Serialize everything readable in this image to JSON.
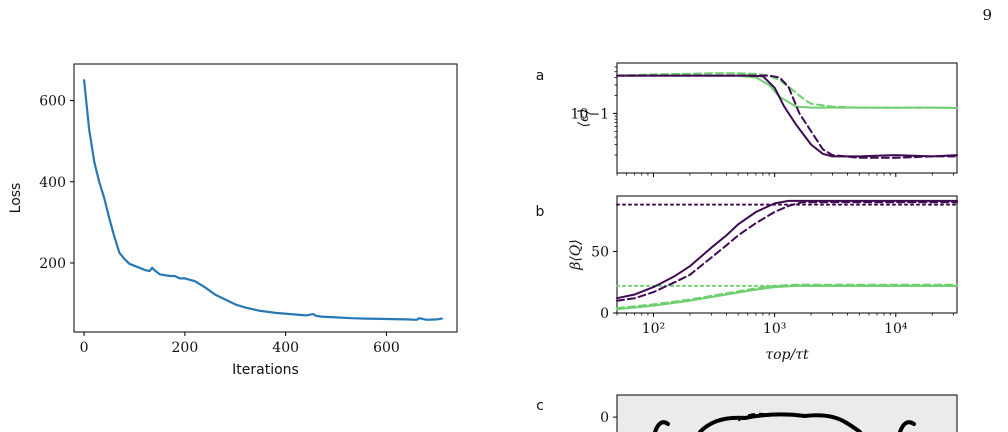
{
  "page": {
    "number": "9"
  },
  "chart_data": [
    {
      "type": "line",
      "xlabel": "Iterations",
      "ylabel": "Loss",
      "xlim": [
        -20,
        740
      ],
      "ylim": [
        30,
        690
      ],
      "xticks": [
        0,
        200,
        400,
        600
      ],
      "yticks": [
        200,
        400,
        600
      ],
      "color": "#2878b5",
      "series": [
        {
          "x": [
            0,
            5,
            10,
            20,
            30,
            40,
            50,
            60,
            70,
            80,
            90,
            100,
            110,
            120,
            130,
            135,
            140,
            150,
            160,
            170,
            180,
            190,
            200,
            220,
            240,
            260,
            280,
            300,
            320,
            350,
            380,
            410,
            440,
            455,
            460,
            470,
            500,
            530,
            560,
            600,
            640,
            660,
            665,
            680,
            700,
            710
          ],
          "y": [
            650,
            590,
            530,
            450,
            400,
            360,
            310,
            265,
            225,
            210,
            198,
            193,
            188,
            183,
            180,
            188,
            182,
            172,
            170,
            168,
            168,
            162,
            162,
            155,
            140,
            122,
            110,
            98,
            90,
            82,
            77,
            74,
            71,
            74,
            70,
            68,
            66,
            64,
            63,
            62,
            61,
            60,
            64,
            60,
            61,
            63
          ]
        }
      ]
    },
    {
      "panel": "a",
      "type": "line",
      "xscale": "log",
      "yscale": "log",
      "xlim": [
        50,
        32000
      ],
      "ylim": [
        0.01,
        0.7
      ],
      "ylabel": "⟨ϵ⟩",
      "yticks": [
        {
          "value": 0.1,
          "label": "10−1"
        }
      ],
      "series": [
        {
          "style": "solid",
          "color": "#6fcf6f",
          "x": [
            50,
            100,
            300,
            500,
            700,
            900,
            1100,
            1500,
            2000,
            3000,
            5000,
            10000,
            20000,
            32000
          ],
          "y": [
            0.43,
            0.43,
            0.43,
            0.43,
            0.4,
            0.3,
            0.19,
            0.13,
            0.125,
            0.125,
            0.125,
            0.124,
            0.125,
            0.123
          ]
        },
        {
          "style": "dashed",
          "color": "#6fcf6f",
          "x": [
            50,
            100,
            300,
            500,
            700,
            900,
            1100,
            1400,
            1700,
            2000,
            3000,
            5000,
            10000,
            20000,
            32000
          ],
          "y": [
            0.43,
            0.45,
            0.47,
            0.47,
            0.46,
            0.43,
            0.36,
            0.25,
            0.18,
            0.145,
            0.13,
            0.125,
            0.125,
            0.125,
            0.123
          ]
        },
        {
          "style": "solid",
          "color": "#3f0a52",
          "x": [
            50,
            100,
            300,
            600,
            800,
            1000,
            1200,
            1500,
            2000,
            2500,
            3000,
            5000,
            10000,
            20000,
            32000
          ],
          "y": [
            0.43,
            0.43,
            0.43,
            0.43,
            0.42,
            0.27,
            0.13,
            0.065,
            0.03,
            0.021,
            0.019,
            0.019,
            0.02,
            0.019,
            0.02
          ]
        },
        {
          "style": "dashed",
          "color": "#3f0a52",
          "x": [
            50,
            100,
            300,
            600,
            900,
            1100,
            1300,
            1600,
            2000,
            2500,
            3000,
            5000,
            10000,
            20000,
            32000
          ],
          "y": [
            0.43,
            0.43,
            0.43,
            0.43,
            0.43,
            0.4,
            0.28,
            0.1,
            0.05,
            0.025,
            0.02,
            0.018,
            0.018,
            0.019,
            0.019
          ]
        }
      ]
    },
    {
      "panel": "b",
      "type": "line",
      "xscale": "log",
      "xlim": [
        50,
        32000
      ],
      "ylim": [
        0,
        95
      ],
      "ylabel": "β⟨Q⟩",
      "xlabel": "τop/τt",
      "yticks": [
        {
          "value": 0,
          "label": "0"
        },
        {
          "value": 50,
          "label": "50"
        }
      ],
      "xticks": [
        {
          "value": 100,
          "label": "10²"
        },
        {
          "value": 1000,
          "label": "10³"
        },
        {
          "value": 10000,
          "label": "10⁴"
        }
      ],
      "series": [
        {
          "style": "dotted",
          "color": "#3f0a52",
          "x": [
            50,
            32000
          ],
          "y": [
            88,
            88
          ]
        },
        {
          "style": "dotted",
          "color": "#6fcf6f",
          "x": [
            50,
            32000
          ],
          "y": [
            22,
            22
          ]
        },
        {
          "style": "solid",
          "color": "#3f0a52",
          "x": [
            50,
            70,
            100,
            150,
            200,
            300,
            400,
            500,
            700,
            1000,
            1300,
            2000,
            5000,
            10000,
            32000
          ],
          "y": [
            12,
            15,
            21,
            30,
            38,
            53,
            63,
            72,
            82,
            89,
            91,
            91,
            91,
            91,
            91
          ]
        },
        {
          "style": "dashed",
          "color": "#3f0a52",
          "x": [
            50,
            70,
            100,
            150,
            200,
            300,
            400,
            500,
            700,
            1000,
            1300,
            1700,
            2500,
            5000,
            10000,
            32000
          ],
          "y": [
            10,
            12,
            17,
            25,
            31,
            45,
            55,
            63,
            73,
            82,
            87,
            90,
            90,
            90,
            90,
            90
          ]
        },
        {
          "style": "solid",
          "color": "#6fcf6f",
          "x": [
            50,
            100,
            200,
            400,
            700,
            1000,
            1500,
            3000,
            10000,
            32000
          ],
          "y": [
            3,
            6,
            10,
            15,
            19,
            21,
            22,
            22,
            22,
            22
          ]
        },
        {
          "style": "dashed",
          "color": "#6fcf6f",
          "x": [
            50,
            100,
            200,
            400,
            700,
            1000,
            1500,
            3000,
            10000,
            32000
          ],
          "y": [
            4,
            7,
            11,
            16,
            20,
            22,
            23,
            23,
            23,
            23
          ]
        }
      ]
    },
    {
      "panel": "c",
      "type": "line",
      "ylim": [
        -30,
        5
      ],
      "yticks": [
        {
          "value": 0,
          "label": "0"
        }
      ],
      "background": "#ebebeb",
      "series": []
    }
  ]
}
